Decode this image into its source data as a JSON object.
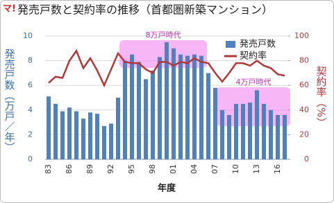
{
  "logo": "マ!",
  "chart_data": {
    "type": "bar_line",
    "title": "発売戸数と契約率の推移（首都圏新築マンション）",
    "ylabel": "発売戸数（万戸／年）",
    "y2label": "契約率（%）",
    "xlabel": "年度",
    "categories": [
      "83",
      null,
      null,
      "86",
      null,
      null,
      "89",
      null,
      null,
      "92",
      null,
      null,
      "95",
      null,
      null,
      "98",
      null,
      null,
      "01",
      null,
      null,
      "04",
      null,
      null,
      "07",
      null,
      null,
      "10",
      null,
      null,
      "13",
      null,
      null,
      "16",
      null
    ],
    "series": [
      {
        "name": "発売戸数",
        "type": "bar",
        "color": "#4f81bd",
        "values": [
          5.1,
          4.5,
          3.9,
          4.2,
          3.9,
          3.3,
          3.8,
          3.7,
          2.7,
          2.9,
          5.0,
          8.0,
          8.5,
          7.9,
          6.5,
          7.2,
          8.3,
          9.5,
          9.0,
          8.5,
          8.4,
          8.5,
          8.4,
          7.0,
          5.8,
          4.0,
          3.6,
          4.5,
          4.5,
          4.6,
          5.6,
          4.5,
          4.0,
          3.6,
          3.6
        ]
      },
      {
        "name": "契約率",
        "type": "line",
        "axis": "y2",
        "color": "#b0383a",
        "values": [
          62,
          67,
          66,
          80,
          88,
          74,
          82,
          72,
          60,
          73,
          86,
          79,
          78,
          78,
          73,
          70,
          79,
          79,
          76,
          79,
          78,
          82,
          79,
          78,
          70,
          63,
          70,
          78,
          78,
          76,
          80,
          76,
          74,
          69,
          68
        ]
      }
    ],
    "ylim": [
      0,
      10
    ],
    "yticks": [
      0,
      2,
      4,
      6,
      8,
      10
    ],
    "y2lim": [
      0,
      100
    ],
    "y2ticks": [
      0,
      20,
      40,
      60,
      80,
      100
    ],
    "grid": true,
    "legend": "upper right",
    "annotations": [
      {
        "text": "8万戸時代"
      },
      {
        "text": "4万戸時代"
      }
    ]
  }
}
